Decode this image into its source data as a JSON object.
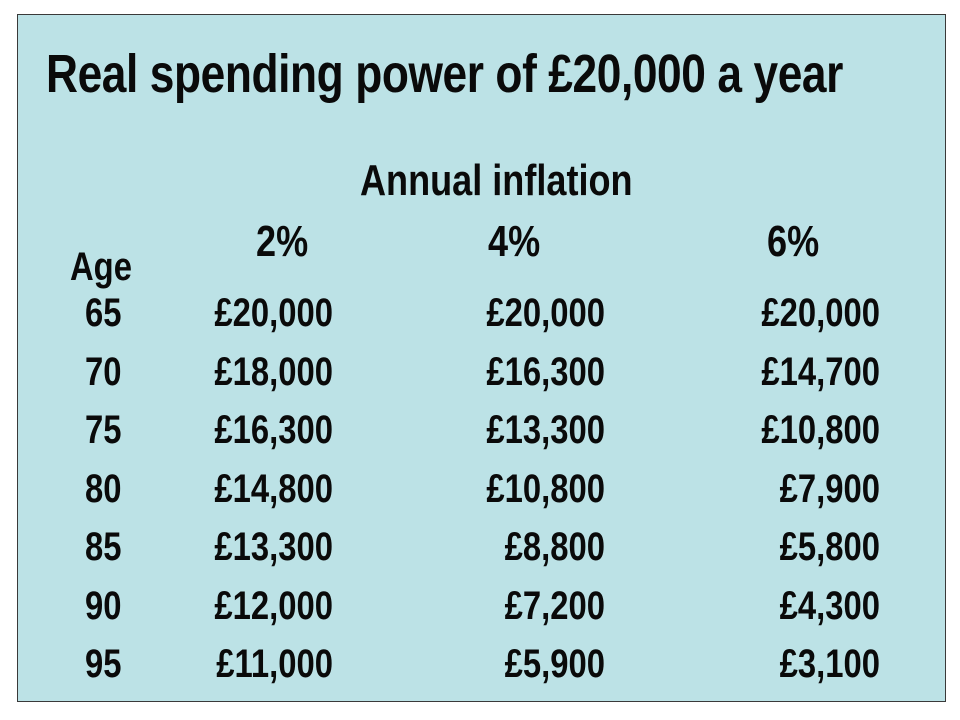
{
  "chart_data": {
    "type": "table",
    "title": "Real spending power of £20,000 a year",
    "subtitle": "Annual inflation",
    "row_header": "Age",
    "columns": [
      "2%",
      "4%",
      "6%"
    ],
    "rows": [
      {
        "label": "65",
        "values": [
          "£20,000",
          "£20,000",
          "£20,000"
        ]
      },
      {
        "label": "70",
        "values": [
          "£18,000",
          "£16,300",
          "£14,700"
        ]
      },
      {
        "label": "75",
        "values": [
          "£16,300",
          "£13,300",
          "£10,800"
        ]
      },
      {
        "label": "80",
        "values": [
          "£14,800",
          "£10,800",
          "£7,900"
        ]
      },
      {
        "label": "85",
        "values": [
          "£13,300",
          "£8,800",
          "£5,800"
        ]
      },
      {
        "label": "90",
        "values": [
          "£12,000",
          "£7,200",
          "£4,300"
        ]
      },
      {
        "label": "95",
        "values": [
          "£11,000",
          "£5,900",
          "£3,100"
        ]
      }
    ]
  },
  "colors": {
    "background": "#bce2e6",
    "border": "#3a3a3a",
    "text": "#0a0a0a"
  }
}
